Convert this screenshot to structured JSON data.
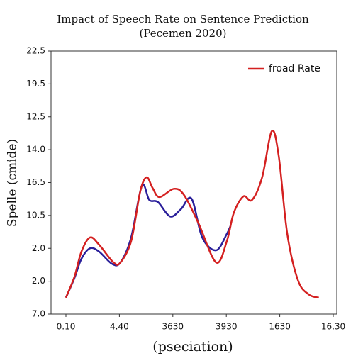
{
  "chart_data": {
    "type": "line",
    "title": "Impact of Speech Rate on Sentence Prediction",
    "subtitle": "(Pecemen 2020)",
    "xlabel": "(pseciation)",
    "ylabel": "Spelle (cmide)",
    "xlim": [
      0,
      5
    ],
    "ylim": [
      0,
      8
    ],
    "xticks": [
      {
        "value": 0,
        "label": "0.10"
      },
      {
        "value": 1,
        "label": "4.40"
      },
      {
        "value": 2,
        "label": "3630"
      },
      {
        "value": 3,
        "label": "3930"
      },
      {
        "value": 4,
        "label": "1630"
      },
      {
        "value": 5,
        "label": "16.30"
      }
    ],
    "yticks": [
      {
        "value": 0,
        "label": "7.0"
      },
      {
        "value": 1,
        "label": "2.0"
      },
      {
        "value": 2,
        "label": "2.0"
      },
      {
        "value": 3,
        "label": "10.5"
      },
      {
        "value": 4,
        "label": "16.5"
      },
      {
        "value": 5,
        "label": "14.0"
      },
      {
        "value": 6,
        "label": "12.5"
      },
      {
        "value": 7,
        "label": "19.5"
      },
      {
        "value": 8,
        "label": "22.5"
      }
    ],
    "legend": "upper right",
    "series": [
      {
        "name": "froad Rate",
        "color": "#d42020",
        "x": [
          0,
          0.16,
          0.29,
          0.45,
          0.62,
          0.89,
          1.02,
          1.22,
          1.39,
          1.51,
          1.62,
          1.75,
          2.02,
          2.21,
          2.48,
          2.81,
          3.01,
          3.14,
          3.32,
          3.48,
          3.67,
          3.85,
          3.98,
          4.14,
          4.34,
          4.54,
          4.73
        ],
        "values": [
          0.5,
          1.14,
          1.9,
          2.33,
          2.11,
          1.57,
          1.57,
          2.22,
          3.73,
          4.16,
          3.84,
          3.56,
          3.81,
          3.62,
          2.76,
          1.57,
          2.22,
          3.08,
          3.58,
          3.47,
          4.16,
          5.56,
          4.81,
          2.44,
          1.03,
          0.6,
          0.5
        ]
      },
      {
        "color": "#2a1f9a",
        "x": [
          0,
          0.16,
          0.29,
          0.45,
          0.62,
          0.86,
          1.02,
          1.22,
          1.42,
          1.56,
          1.72,
          1.95,
          2.15,
          2.35,
          2.55,
          2.81,
          3.01,
          3.08
        ],
        "values": [
          0.5,
          1.1,
          1.68,
          2.0,
          1.9,
          1.53,
          1.57,
          2.33,
          3.9,
          3.47,
          3.41,
          2.97,
          3.19,
          3.51,
          2.33,
          1.94,
          2.44,
          2.69
        ]
      }
    ]
  }
}
